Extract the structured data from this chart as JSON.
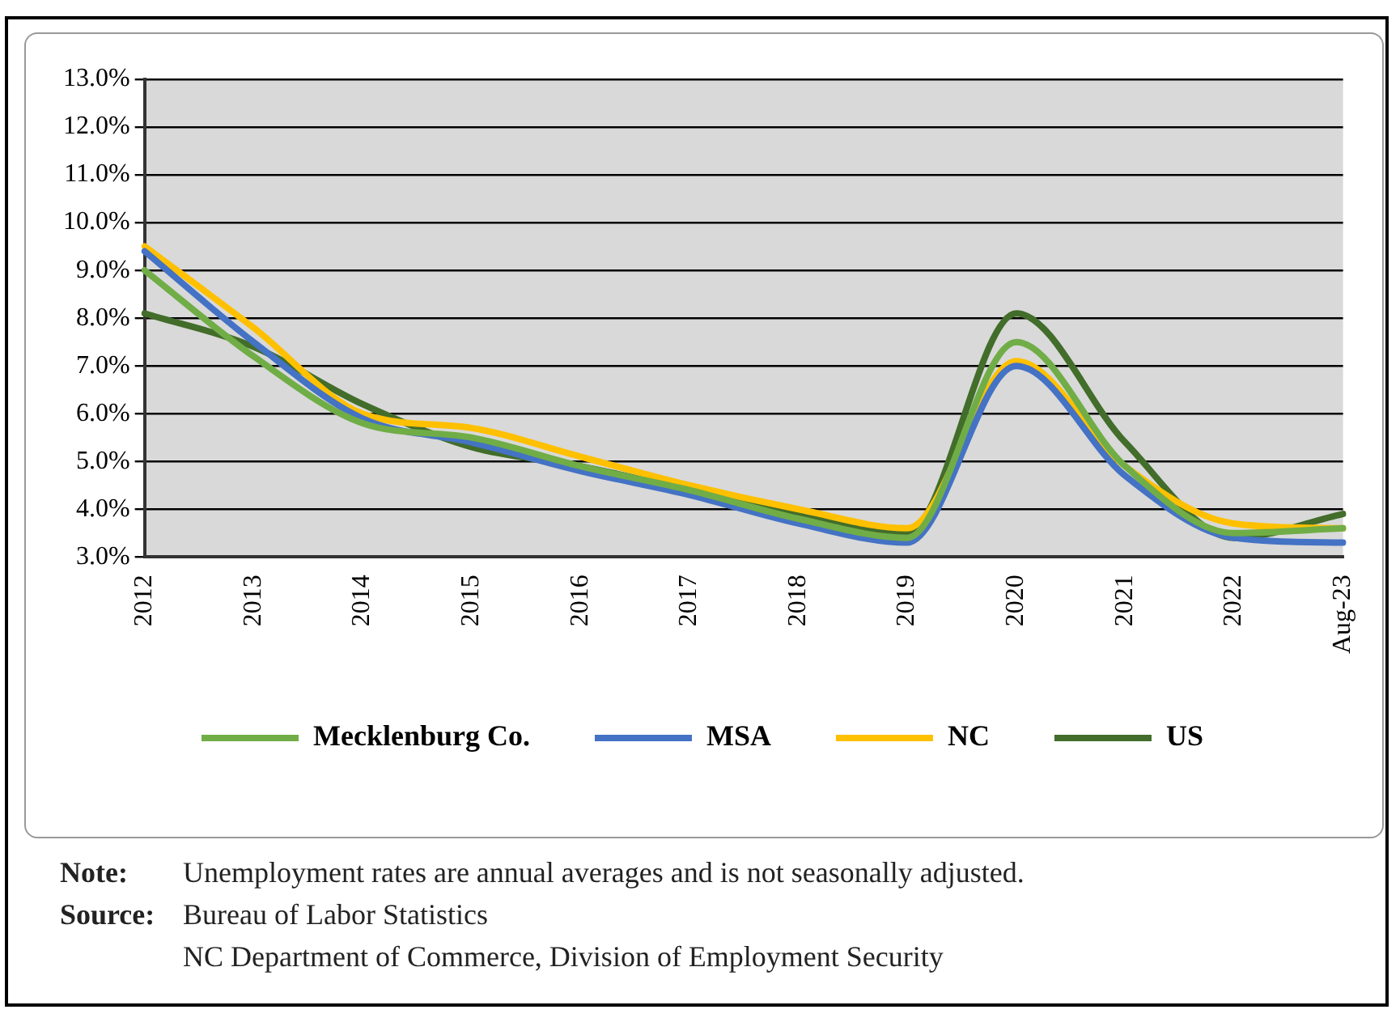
{
  "chart_data": {
    "type": "line",
    "categories": [
      "2012",
      "2013",
      "2014",
      "2015",
      "2016",
      "2017",
      "2018",
      "2019",
      "2020",
      "2021",
      "2022",
      "Aug-23"
    ],
    "series": [
      {
        "name": "Mecklenburg Co.",
        "color": "#70ad47",
        "values": [
          9.0,
          7.2,
          5.8,
          5.5,
          4.9,
          4.4,
          3.8,
          3.4,
          7.5,
          4.9,
          3.5,
          3.6
        ]
      },
      {
        "name": "MSA",
        "color": "#4472c4",
        "values": [
          9.4,
          7.5,
          5.9,
          5.4,
          4.8,
          4.3,
          3.7,
          3.3,
          7.0,
          4.7,
          3.4,
          3.3
        ]
      },
      {
        "name": "NC",
        "color": "#ffc000",
        "values": [
          9.5,
          7.8,
          6.0,
          5.7,
          5.1,
          4.5,
          4.0,
          3.6,
          7.1,
          4.9,
          3.7,
          3.6
        ]
      },
      {
        "name": "US",
        "color": "#426d2a",
        "values": [
          8.1,
          7.4,
          6.2,
          5.3,
          4.9,
          4.4,
          3.9,
          3.5,
          8.1,
          5.4,
          3.4,
          3.9
        ]
      }
    ],
    "ylim": [
      3,
      13
    ],
    "yticks": [
      {
        "value": 3,
        "label": "3.0%"
      },
      {
        "value": 4,
        "label": "4.0%"
      },
      {
        "value": 5,
        "label": "5.0%"
      },
      {
        "value": 6,
        "label": "6.0%"
      },
      {
        "value": 7,
        "label": "7.0%"
      },
      {
        "value": 8,
        "label": "8.0%"
      },
      {
        "value": 9,
        "label": "9.0%"
      },
      {
        "value": 10,
        "label": "10.0%"
      },
      {
        "value": 11,
        "label": "11.0%"
      },
      {
        "value": 12,
        "label": "12.0%"
      },
      {
        "value": 13,
        "label": "13.0%"
      }
    ],
    "grid": "y",
    "legend": "bottom",
    "marker": "none",
    "line_style": "solid",
    "annotations": [
      "Note: Unemployment rates are annual averages and is not seasonally adjusted.",
      "Source: Bureau of Labor Statistics",
      "NC Department of Commerce, Division of Employment Security"
    ]
  }
}
